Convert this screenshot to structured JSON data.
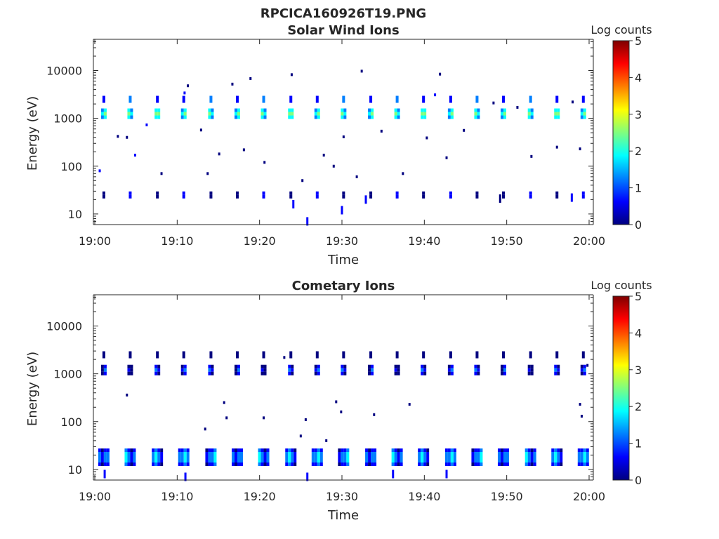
{
  "figure_title": "RPCICA160926T19.PNG",
  "colors": {
    "colormap": [
      "#00007f",
      "#0000ff",
      "#007fff",
      "#00ffff",
      "#7fff7f",
      "#ffff00",
      "#ff7f00",
      "#ff0000",
      "#7f0000"
    ]
  },
  "chart_data": [
    {
      "type": "heatmap",
      "title": "Solar Wind Ions",
      "xlabel": "Time",
      "ylabel": "Energy (eV)",
      "y_scale": "log",
      "ylim": [
        6,
        45000
      ],
      "y_ticks": [
        {
          "v": 10,
          "label": "10"
        },
        {
          "v": 100,
          "label": "100"
        },
        {
          "v": 1000,
          "label": "1000"
        },
        {
          "v": 10000,
          "label": "10000"
        }
      ],
      "x_range_minutes": [
        0,
        60
      ],
      "x_ticks": [
        {
          "v": 0,
          "label": "19:00"
        },
        {
          "v": 10,
          "label": "19:10"
        },
        {
          "v": 20,
          "label": "19:20"
        },
        {
          "v": 30,
          "label": "19:30"
        },
        {
          "v": 40,
          "label": "19:40"
        },
        {
          "v": 50,
          "label": "19:50"
        },
        {
          "v": 60,
          "label": "20:00"
        }
      ],
      "colorbar": {
        "label": "Log counts",
        "range": [
          0,
          5
        ],
        "ticks": [
          "0",
          "1",
          "2",
          "3",
          "4",
          "5"
        ]
      },
      "sweep_times_min": [
        1.1,
        4.3,
        7.6,
        10.8,
        14.1,
        17.3,
        20.5,
        23.8,
        27.0,
        30.2,
        33.5,
        36.7,
        39.9,
        43.2,
        46.4,
        49.6,
        52.9,
        56.1,
        59.3
      ],
      "bands": [
        {
          "energy_eV": 1250,
          "log_counts": 2.4
        },
        {
          "energy_eV": 2500,
          "log_counts": 1.6
        },
        {
          "energy_eV": 25,
          "log_counts": 0.8
        }
      ],
      "scatter_points": [
        {
          "t": 0.6,
          "e": 80,
          "c": 0.5
        },
        {
          "t": 2.8,
          "e": 420,
          "c": 0.3
        },
        {
          "t": 3.9,
          "e": 400,
          "c": 0.3
        },
        {
          "t": 4.9,
          "e": 170,
          "c": 0.4
        },
        {
          "t": 6.3,
          "e": 730,
          "c": 0.4
        },
        {
          "t": 8.1,
          "e": 70,
          "c": 0.3
        },
        {
          "t": 11.3,
          "e": 4800,
          "c": 0.3
        },
        {
          "t": 12.9,
          "e": 570,
          "c": 0.3
        },
        {
          "t": 13.7,
          "e": 70,
          "c": 0.3
        },
        {
          "t": 15.1,
          "e": 180,
          "c": 0.3
        },
        {
          "t": 16.7,
          "e": 5200,
          "c": 0.3
        },
        {
          "t": 18.1,
          "e": 220,
          "c": 0.3
        },
        {
          "t": 18.9,
          "e": 6800,
          "c": 0.3
        },
        {
          "t": 20.6,
          "e": 120,
          "c": 0.3
        },
        {
          "t": 23.9,
          "e": 8200,
          "c": 0.3
        },
        {
          "t": 25.2,
          "e": 50,
          "c": 0.3
        },
        {
          "t": 27.8,
          "e": 170,
          "c": 0.3
        },
        {
          "t": 29.0,
          "e": 100,
          "c": 0.3
        },
        {
          "t": 30.2,
          "e": 410,
          "c": 0.3
        },
        {
          "t": 31.8,
          "e": 60,
          "c": 0.3
        },
        {
          "t": 32.4,
          "e": 9700,
          "c": 0.3
        },
        {
          "t": 34.8,
          "e": 540,
          "c": 0.3
        },
        {
          "t": 37.4,
          "e": 70,
          "c": 0.3
        },
        {
          "t": 40.3,
          "e": 390,
          "c": 0.3
        },
        {
          "t": 41.9,
          "e": 8400,
          "c": 0.3
        },
        {
          "t": 42.7,
          "e": 150,
          "c": 0.3
        },
        {
          "t": 44.8,
          "e": 560,
          "c": 0.3
        },
        {
          "t": 48.4,
          "e": 2100,
          "c": 0.3
        },
        {
          "t": 51.3,
          "e": 1700,
          "c": 0.3
        },
        {
          "t": 53.0,
          "e": 160,
          "c": 0.3
        },
        {
          "t": 56.1,
          "e": 250,
          "c": 0.3
        },
        {
          "t": 58.0,
          "e": 2200,
          "c": 0.3
        },
        {
          "t": 58.9,
          "e": 230,
          "c": 0.3
        },
        {
          "t": 10.9,
          "e": 3400,
          "c": 0.4
        },
        {
          "t": 41.3,
          "e": 3100,
          "c": 0.4
        }
      ],
      "low_energy_marks": [
        {
          "t": 24.1,
          "e": 16,
          "c": 0.5
        },
        {
          "t": 25.8,
          "e": 7,
          "c": 0.5
        },
        {
          "t": 30.0,
          "e": 12,
          "c": 0.5
        },
        {
          "t": 32.9,
          "e": 20,
          "c": 0.5
        },
        {
          "t": 49.2,
          "e": 21,
          "c": 0.3
        },
        {
          "t": 57.9,
          "e": 22,
          "c": 0.5
        }
      ]
    },
    {
      "type": "heatmap",
      "title": "Cometary Ions",
      "xlabel": "Time",
      "ylabel": "Energy (eV)",
      "y_scale": "log",
      "ylim": [
        6,
        45000
      ],
      "y_ticks": [
        {
          "v": 10,
          "label": "10"
        },
        {
          "v": 100,
          "label": "100"
        },
        {
          "v": 1000,
          "label": "1000"
        },
        {
          "v": 10000,
          "label": "10000"
        }
      ],
      "x_range_minutes": [
        0,
        60
      ],
      "x_ticks": [
        {
          "v": 0,
          "label": "19:00"
        },
        {
          "v": 10,
          "label": "19:10"
        },
        {
          "v": 20,
          "label": "19:20"
        },
        {
          "v": 30,
          "label": "19:30"
        },
        {
          "v": 40,
          "label": "19:40"
        },
        {
          "v": 50,
          "label": "19:50"
        },
        {
          "v": 60,
          "label": "20:00"
        }
      ],
      "colorbar": {
        "label": "Log counts",
        "range": [
          0,
          5
        ],
        "ticks": [
          "0",
          "1",
          "2",
          "3",
          "4",
          "5"
        ]
      },
      "sweep_times_min": [
        1.1,
        4.3,
        7.6,
        10.8,
        14.1,
        17.3,
        20.5,
        23.8,
        27.0,
        30.2,
        33.5,
        36.7,
        39.9,
        43.2,
        46.4,
        49.6,
        52.9,
        56.1,
        59.3
      ],
      "bands": [
        {
          "energy_eV": 1200,
          "log_counts": 0.9
        },
        {
          "energy_eV": 2500,
          "log_counts": 0.5
        },
        {
          "energy_eV": 18,
          "log_counts": 1.3
        }
      ],
      "scatter_points": [
        {
          "t": 3.9,
          "e": 360,
          "c": 0.3
        },
        {
          "t": 13.4,
          "e": 70,
          "c": 0.3
        },
        {
          "t": 15.7,
          "e": 250,
          "c": 0.3
        },
        {
          "t": 16.0,
          "e": 120,
          "c": 0.3
        },
        {
          "t": 20.5,
          "e": 120,
          "c": 0.3
        },
        {
          "t": 25.0,
          "e": 50,
          "c": 0.3
        },
        {
          "t": 25.6,
          "e": 110,
          "c": 0.3
        },
        {
          "t": 28.1,
          "e": 40,
          "c": 0.3
        },
        {
          "t": 29.3,
          "e": 260,
          "c": 0.3
        },
        {
          "t": 29.9,
          "e": 160,
          "c": 0.3
        },
        {
          "t": 33.9,
          "e": 140,
          "c": 0.3
        },
        {
          "t": 38.2,
          "e": 230,
          "c": 0.3
        },
        {
          "t": 58.9,
          "e": 230,
          "c": 0.3
        },
        {
          "t": 59.1,
          "e": 130,
          "c": 0.3
        },
        {
          "t": 59.8,
          "e": 1500,
          "c": 0.3
        },
        {
          "t": 23.0,
          "e": 2200,
          "c": 0.3
        }
      ],
      "low_energy_marks": [
        {
          "t": 1.2,
          "e": 8,
          "c": 0.5
        },
        {
          "t": 11.0,
          "e": 7,
          "c": 0.5
        },
        {
          "t": 25.8,
          "e": 7,
          "c": 0.5
        },
        {
          "t": 36.2,
          "e": 8,
          "c": 0.5
        },
        {
          "t": 42.7,
          "e": 8,
          "c": 0.5
        }
      ]
    }
  ]
}
